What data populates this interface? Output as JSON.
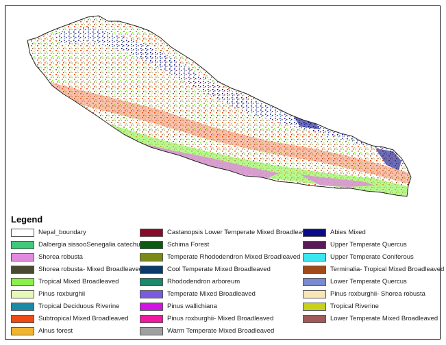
{
  "legend": {
    "title": "Legend",
    "columns": [
      [
        {
          "label": "Nepal_boundary",
          "color": "#ffffff"
        },
        {
          "label": "Dalbergia sissooSenegalia catechu",
          "color": "#3fc97a"
        },
        {
          "label": "Shorea robusta",
          "color": "#e08ae0"
        },
        {
          "label": "Shorea robusta- Mixed Broadleaved",
          "color": "#4a4a32"
        },
        {
          "label": "Tropical Mixed Broadleaved",
          "color": "#8cf04a"
        },
        {
          "label": "Pinus roxburghii",
          "color": "#e6f8b8"
        },
        {
          "label": "Tropical Deciduous Riverine",
          "color": "#1a8aa6"
        },
        {
          "label": "Subtropical Mixed Broadleaved",
          "color": "#f04a14"
        },
        {
          "label": "Alnus forest",
          "color": "#f0b432"
        }
      ],
      [
        {
          "label": "Castanopsis Lower Temperate Mixed Broadleaved",
          "color": "#8a0a2a"
        },
        {
          "label": "Schima Forest",
          "color": "#0a5a14"
        },
        {
          "label": "Temperate Rhododendron Mixed Broadleaved",
          "color": "#7a8a1a"
        },
        {
          "label": "Cool Temperate Mixed Broadleaved",
          "color": "#0a3a6a"
        },
        {
          "label": "Rhododendron arboreum",
          "color": "#1a8a6a"
        },
        {
          "label": "Temperate Mixed Broadleaved",
          "color": "#7a5ae0"
        },
        {
          "label": "Pinus wallichiana",
          "color": "#d214e6"
        },
        {
          "label": "Pinus roxburghii- Mixed Broadleaved",
          "color": "#f01aa0"
        },
        {
          "label": "Warm Temperate Mixed Broadleaved",
          "color": "#a0a0a0"
        }
      ],
      [
        {
          "label": "Abies Mixed",
          "color": "#0a0a8a"
        },
        {
          "label": "Upper Temperate Quercus",
          "color": "#5a1a5a"
        },
        {
          "label": "Upper Temperate Coniferous",
          "color": "#3ae6f0"
        },
        {
          "label": "Terminalia- Tropical Mixed Broadleaved",
          "color": "#a04a1a"
        },
        {
          "label": "Lower Temperate Quercus",
          "color": "#7a8ad2"
        },
        {
          "label": "Pinus roxburghii- Shorea robusta",
          "color": "#f8e6b4"
        },
        {
          "label": "Tropical Riverine",
          "color": "#c8d21a"
        },
        {
          "label": "Lower Temperate Mixed Broadleaved",
          "color": "#a05a5a"
        }
      ]
    ]
  }
}
